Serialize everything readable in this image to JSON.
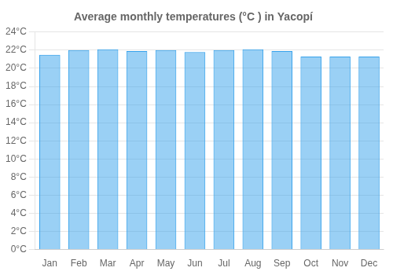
{
  "chart_data": {
    "type": "bar",
    "title": "Average monthly temperatures (°C ) in Yacopí",
    "categories": [
      "Jan",
      "Feb",
      "Mar",
      "Apr",
      "May",
      "Jun",
      "Jul",
      "Aug",
      "Sep",
      "Oct",
      "Nov",
      "Dec"
    ],
    "values": [
      21.5,
      22.0,
      22.1,
      21.9,
      22.0,
      21.8,
      22.0,
      22.1,
      21.9,
      21.3,
      21.3,
      21.3
    ],
    "ylim": [
      0,
      24
    ],
    "yticks": [
      {
        "value": 0,
        "label": "0°C"
      },
      {
        "value": 2,
        "label": "2°C"
      },
      {
        "value": 4,
        "label": "4°C"
      },
      {
        "value": 6,
        "label": "6°C"
      },
      {
        "value": 8,
        "label": "8°C"
      },
      {
        "value": 10,
        "label": "10°C"
      },
      {
        "value": 12,
        "label": "12°C"
      },
      {
        "value": 14,
        "label": "14°C"
      },
      {
        "value": 16,
        "label": "16°C"
      },
      {
        "value": 18,
        "label": "18°C"
      },
      {
        "value": 20,
        "label": "20°C"
      },
      {
        "value": 22,
        "label": "22°C"
      },
      {
        "value": 24,
        "label": "24°C"
      }
    ],
    "grid": "y"
  }
}
